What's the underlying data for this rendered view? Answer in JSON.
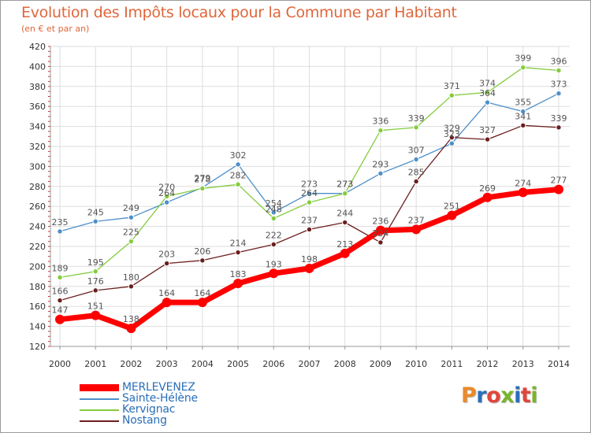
{
  "header": {
    "title": "Evolution des Impôts locaux pour la Commune par Habitant",
    "subtitle": "(en € et par an)"
  },
  "logo": {
    "text": "Proxiti",
    "colors": [
      "#e98a2a",
      "#2a6fb9",
      "#e0463a",
      "#79b52c",
      "#2a6fb9",
      "#e0463a",
      "#79b52c"
    ]
  },
  "colors": {
    "title": "#e0663a",
    "grid": "#dddddd",
    "axis": "#999999"
  },
  "chart_data": {
    "type": "line",
    "title": "Evolution des Impôts locaux pour la Commune par Habitant",
    "subtitle": "(en € et par an)",
    "xlabel": "",
    "ylabel": "",
    "x": [
      "2000",
      "2001",
      "2002",
      "2003",
      "2004",
      "2005",
      "2006",
      "2007",
      "2008",
      "2009",
      "2010",
      "2011",
      "2012",
      "2013",
      "2014"
    ],
    "ylim": [
      120,
      420
    ],
    "yticks": [
      120,
      140,
      160,
      180,
      200,
      220,
      240,
      260,
      280,
      300,
      320,
      340,
      360,
      380,
      400,
      420
    ],
    "grid": true,
    "legend": "bottom-left",
    "series": [
      {
        "name": "Sainte-Hélène",
        "color": "#4d8fc9",
        "values": [
          235,
          245,
          249,
          264,
          279,
          302,
          254,
          273,
          273,
          293,
          307,
          323,
          364,
          355,
          373
        ]
      },
      {
        "name": "Kervignac",
        "color": "#84cc3e",
        "values": [
          189,
          195,
          225,
          270,
          278,
          282,
          248,
          264,
          273,
          336,
          339,
          371,
          374,
          399,
          396
        ]
      },
      {
        "name": "Nostang",
        "color": "#6b1e1e",
        "values": [
          166,
          176,
          180,
          203,
          206,
          214,
          222,
          237,
          244,
          224,
          285,
          329,
          327,
          341,
          339
        ]
      },
      {
        "name": "MERLEVENEZ",
        "color": "#ff0000",
        "values": [
          147,
          151,
          138,
          164,
          164,
          183,
          193,
          198,
          213,
          236,
          237,
          251,
          269,
          274,
          277
        ]
      }
    ]
  }
}
